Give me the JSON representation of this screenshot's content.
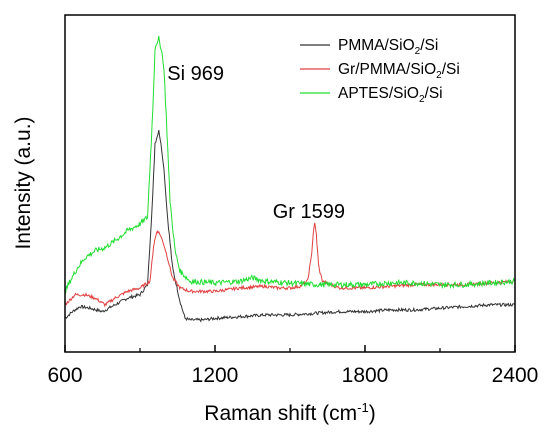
{
  "chart_data": {
    "type": "line",
    "title": "",
    "xlabel": "Raman shift (cm",
    "xlabel_sup": "-1",
    "xlabel_close": ")",
    "ylabel": "Intensity (a.u.)",
    "xlim": [
      600,
      2400
    ],
    "ylim": [
      0,
      100
    ],
    "y_ticks_shown": false,
    "grid": false,
    "legend_position": "top-right",
    "x_ticks": [
      600,
      1200,
      1800,
      2400
    ],
    "x_tick_labels": [
      "600",
      "1200",
      "1800",
      "2400"
    ],
    "annotations": [
      {
        "text": "Si 969",
        "x": 969
      },
      {
        "text": "Gr 1599",
        "x": 1599
      }
    ],
    "series": [
      {
        "name_parts": [
          "PMMA/SiO",
          "2",
          "/Si"
        ],
        "color": "#333333",
        "points": [
          [
            600,
            10
          ],
          [
            630,
            12
          ],
          [
            660,
            13.5
          ],
          [
            700,
            13
          ],
          [
            750,
            12
          ],
          [
            800,
            14
          ],
          [
            850,
            16
          ],
          [
            900,
            17
          ],
          [
            930,
            20
          ],
          [
            950,
            45
          ],
          [
            960,
            62
          ],
          [
            969,
            64
          ],
          [
            975,
            66
          ],
          [
            985,
            61
          ],
          [
            995,
            55
          ],
          [
            1010,
            40
          ],
          [
            1030,
            25
          ],
          [
            1060,
            15
          ],
          [
            1080,
            10
          ],
          [
            1100,
            9.5
          ],
          [
            1150,
            9.5
          ],
          [
            1200,
            10
          ],
          [
            1300,
            10.5
          ],
          [
            1400,
            11
          ],
          [
            1500,
            11
          ],
          [
            1600,
            11.5
          ],
          [
            1700,
            12
          ],
          [
            1800,
            12
          ],
          [
            1900,
            12.5
          ],
          [
            2000,
            12.5
          ],
          [
            2100,
            13
          ],
          [
            2200,
            13.5
          ],
          [
            2300,
            14
          ],
          [
            2400,
            14
          ]
        ]
      },
      {
        "name_parts": [
          "Gr/PMMA/SiO",
          "2",
          "/Si"
        ],
        "color": "#e04040",
        "points": [
          [
            600,
            14
          ],
          [
            640,
            17
          ],
          [
            680,
            17
          ],
          [
            720,
            16
          ],
          [
            760,
            14
          ],
          [
            800,
            16
          ],
          [
            850,
            18
          ],
          [
            900,
            19
          ],
          [
            940,
            21
          ],
          [
            955,
            32
          ],
          [
            965,
            35
          ],
          [
            969,
            36
          ],
          [
            980,
            35
          ],
          [
            995,
            32
          ],
          [
            1010,
            28
          ],
          [
            1030,
            22
          ],
          [
            1060,
            19
          ],
          [
            1100,
            18
          ],
          [
            1200,
            18
          ],
          [
            1300,
            19
          ],
          [
            1400,
            19.5
          ],
          [
            1450,
            19
          ],
          [
            1500,
            19
          ],
          [
            1540,
            19.5
          ],
          [
            1570,
            21
          ],
          [
            1585,
            28
          ],
          [
            1595,
            37
          ],
          [
            1599,
            38
          ],
          [
            1605,
            35
          ],
          [
            1615,
            25
          ],
          [
            1630,
            21
          ],
          [
            1660,
            20
          ],
          [
            1700,
            19
          ],
          [
            1800,
            19
          ],
          [
            1900,
            19.5
          ],
          [
            2000,
            20
          ],
          [
            2100,
            20
          ],
          [
            2200,
            20
          ],
          [
            2300,
            20.5
          ],
          [
            2400,
            21
          ]
        ]
      },
      {
        "name_parts": [
          "APTES/SiO",
          "2",
          "/Si"
        ],
        "color": "#22dd33",
        "points": [
          [
            600,
            18
          ],
          [
            620,
            21
          ],
          [
            650,
            25
          ],
          [
            680,
            28
          ],
          [
            720,
            30
          ],
          [
            760,
            31
          ],
          [
            800,
            33
          ],
          [
            850,
            36
          ],
          [
            900,
            38
          ],
          [
            930,
            40
          ],
          [
            950,
            70
          ],
          [
            960,
            90
          ],
          [
            965,
            92
          ],
          [
            969,
            91
          ],
          [
            975,
            93
          ],
          [
            985,
            90
          ],
          [
            995,
            85
          ],
          [
            1005,
            70
          ],
          [
            1020,
            45
          ],
          [
            1040,
            30
          ],
          [
            1060,
            24
          ],
          [
            1100,
            21
          ],
          [
            1200,
            20.5
          ],
          [
            1300,
            21
          ],
          [
            1350,
            22
          ],
          [
            1400,
            21
          ],
          [
            1500,
            20.5
          ],
          [
            1600,
            20
          ],
          [
            1700,
            20
          ],
          [
            1800,
            20
          ],
          [
            1900,
            20.5
          ],
          [
            2000,
            20.5
          ],
          [
            2100,
            20
          ],
          [
            2200,
            20
          ],
          [
            2300,
            20.5
          ],
          [
            2400,
            21
          ]
        ]
      }
    ]
  }
}
